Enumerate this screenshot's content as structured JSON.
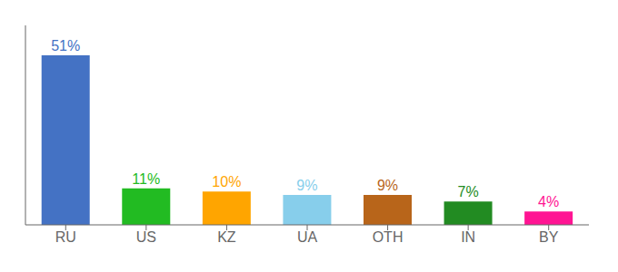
{
  "chart_data": {
    "type": "bar",
    "categories": [
      "RU",
      "US",
      "KZ",
      "UA",
      "OTH",
      "IN",
      "BY"
    ],
    "values": [
      51,
      11,
      10,
      9,
      9,
      7,
      4
    ],
    "value_labels": [
      "51%",
      "11%",
      "10%",
      "9%",
      "9%",
      "7%",
      "4%"
    ],
    "data_labels": true,
    "colors": [
      "#4472C4",
      "#22BB22",
      "#FFA500",
      "#87CEEB",
      "#B8651A",
      "#228B22",
      "#FF1493"
    ],
    "ylim": [
      0,
      60
    ],
    "tick_labels": "x"
  }
}
